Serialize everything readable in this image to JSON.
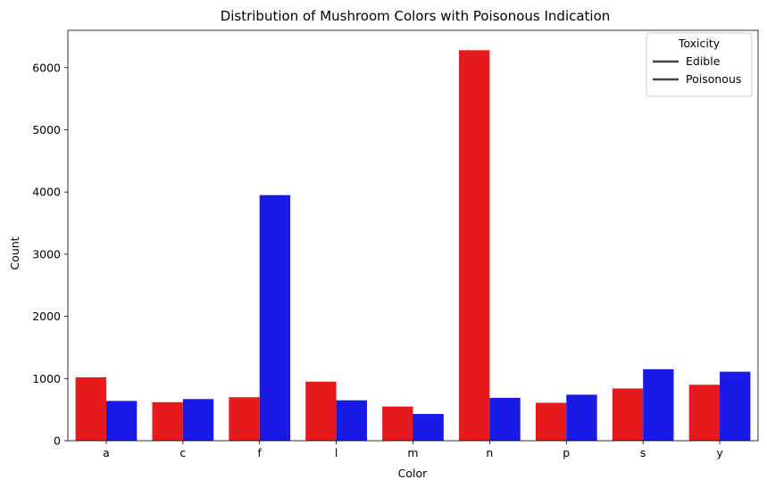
{
  "chart_data": {
    "type": "bar",
    "title": "Distribution of Mushroom Colors with Poisonous Indication",
    "xlabel": "Color",
    "ylabel": "Count",
    "categories": [
      "a",
      "c",
      "f",
      "l",
      "m",
      "n",
      "p",
      "s",
      "y"
    ],
    "series": [
      {
        "name": "Edible",
        "color": "#e41a1c",
        "values": [
          1020,
          620,
          700,
          950,
          550,
          6280,
          610,
          840,
          900
        ]
      },
      {
        "name": "Poisonous",
        "color": "#1a1ae6",
        "values": [
          640,
          670,
          3950,
          650,
          430,
          690,
          740,
          1150,
          1110
        ]
      }
    ],
    "ylim": [
      0,
      6600
    ],
    "yticks": [
      0,
      1000,
      2000,
      3000,
      4000,
      5000,
      6000
    ],
    "grid": false,
    "legend": {
      "title": "Toxicity",
      "placement": "top-right",
      "entries": [
        "Edible",
        "Poisonous"
      ],
      "handle_color": "#444444"
    }
  }
}
